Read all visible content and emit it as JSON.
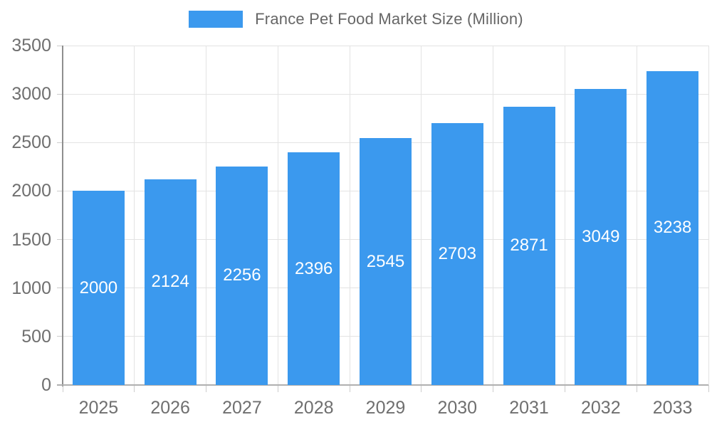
{
  "chart_data": {
    "type": "bar",
    "title": "France Pet Food Market Size (Million)",
    "categories": [
      "2025",
      "2026",
      "2027",
      "2028",
      "2029",
      "2030",
      "2031",
      "2032",
      "2033"
    ],
    "values": [
      2000,
      2124,
      2256,
      2396,
      2545,
      2703,
      2871,
      3049,
      3238
    ],
    "xlabel": "",
    "ylabel": "",
    "ylim": [
      0,
      3500
    ],
    "ytick_step": 500,
    "ytick_labels": [
      "0",
      "500",
      "1000",
      "1500",
      "2000",
      "2500",
      "3000",
      "3500"
    ],
    "grid": true,
    "value_labels_inside_bars": true,
    "legend_position": "top",
    "colors": {
      "bar": "#3B99EE",
      "value_label": "#ffffff",
      "axis_text": "#6f6f6f",
      "legend_text": "#666666",
      "grid_line": "#e3e3e3",
      "tick_line": "#cccccc",
      "axis_line_left": "#8e8e8e",
      "axis_line_bottom": "#b0b0b0"
    }
  }
}
